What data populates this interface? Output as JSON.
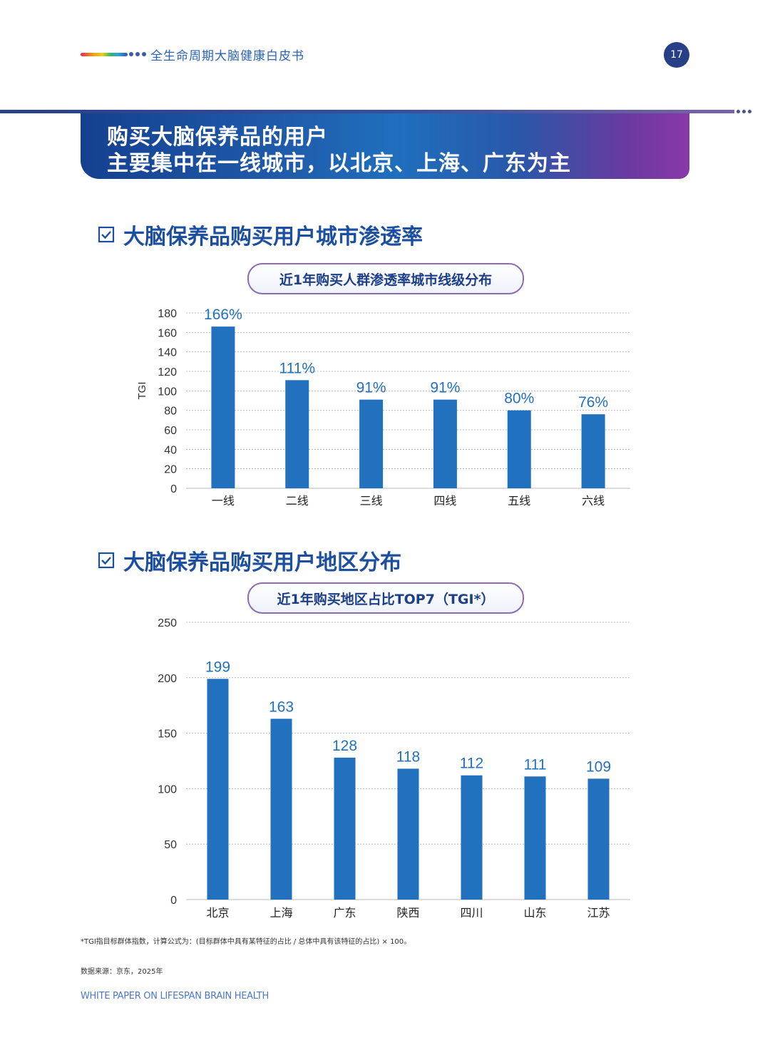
{
  "header": {
    "title": "全生命周期大脑健康白皮书",
    "page_number": "17"
  },
  "banner": {
    "line1": "购买大脑保养品的用户",
    "line2": "主要集中在一线城市，以北京、上海、广东为主"
  },
  "section1": {
    "title": "大脑保养品购买用户城市渗透率",
    "pill": "近1年购买人群渗透率城市线级分布"
  },
  "section2": {
    "title": "大脑保养品购买用户地区分布",
    "pill": "近1年购买地区占比TOP7（TGI*）"
  },
  "footnote": "*TGI指目标群体指数，计算公式为：(目标群体中具有某特征的占比 / 总体中具有该特征的占比) × 100。",
  "source": "数据来源：京东，2025年",
  "footer": "WHITE PAPER ON LIFESPAN BRAIN HEALTH",
  "colors": {
    "bar": "#2271bf",
    "label": "#2271bf",
    "accent": "#1c4fa0"
  },
  "icons": [
    "check-square-icon"
  ],
  "chart_data": [
    {
      "type": "bar",
      "title": "近1年购买人群渗透率城市线级分布",
      "ylabel": "TGI",
      "xlabel": "",
      "ylim": [
        0,
        180
      ],
      "yticks": [
        0,
        20,
        40,
        60,
        80,
        100,
        120,
        140,
        160,
        180
      ],
      "grid": true,
      "categories": [
        "一线",
        "二线",
        "三线",
        "四线",
        "五线",
        "六线"
      ],
      "values": [
        166,
        111,
        91,
        91,
        80,
        76
      ],
      "data_labels": [
        "166%",
        "111%",
        "91%",
        "91%",
        "80%",
        "76%"
      ]
    },
    {
      "type": "bar",
      "title": "近1年购买地区占比TOP7（TGI*）",
      "ylabel": "",
      "xlabel": "",
      "ylim": [
        0,
        250
      ],
      "yticks": [
        0,
        50,
        100,
        150,
        200,
        250
      ],
      "grid": true,
      "categories": [
        "北京",
        "上海",
        "广东",
        "陕西",
        "四川",
        "山东",
        "江苏"
      ],
      "values": [
        199,
        163,
        128,
        118,
        112,
        111,
        109
      ],
      "data_labels": [
        "199",
        "163",
        "128",
        "118",
        "112",
        "111",
        "109"
      ]
    }
  ]
}
